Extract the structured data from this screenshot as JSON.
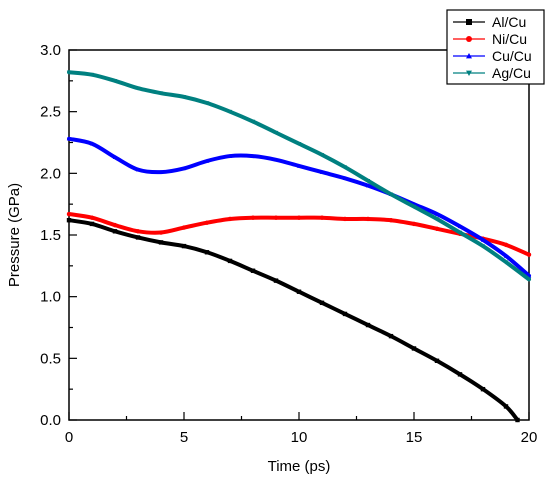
{
  "chart_data": {
    "type": "line",
    "title": "",
    "xlabel": "Time (ps)",
    "ylabel": "Pressure (GPa)",
    "xlim": [
      0,
      20
    ],
    "ylim": [
      0,
      3.0
    ],
    "xticks": [
      0,
      5,
      10,
      15,
      20
    ],
    "yticks": [
      0.0,
      0.5,
      1.0,
      1.5,
      2.0,
      2.5,
      3.0
    ],
    "xtick_labels": [
      "0",
      "5",
      "10",
      "15",
      "20"
    ],
    "ytick_labels": [
      "0.0",
      "0.5",
      "1.0",
      "1.5",
      "2.0",
      "2.5",
      "3.0"
    ],
    "grid": false,
    "legend_position": "top-right",
    "series": [
      {
        "name": "Al/Cu",
        "color": "#000000",
        "marker": "square",
        "x": [
          0,
          1,
          2,
          3,
          4,
          5,
          6,
          7,
          8,
          9,
          10,
          11,
          12,
          13,
          14,
          15,
          16,
          17,
          18,
          19,
          19.5
        ],
        "y": [
          1.62,
          1.59,
          1.53,
          1.48,
          1.44,
          1.41,
          1.36,
          1.29,
          1.21,
          1.13,
          1.04,
          0.95,
          0.86,
          0.77,
          0.68,
          0.58,
          0.48,
          0.37,
          0.25,
          0.11,
          0.0
        ]
      },
      {
        "name": "Ni/Cu",
        "color": "#ff0000",
        "marker": "circle",
        "x": [
          0,
          1,
          2,
          3,
          4,
          5,
          6,
          7,
          8,
          9,
          10,
          11,
          12,
          13,
          14,
          15,
          16,
          17,
          18,
          19,
          20
        ],
        "y": [
          1.67,
          1.64,
          1.58,
          1.53,
          1.52,
          1.56,
          1.6,
          1.63,
          1.64,
          1.64,
          1.64,
          1.64,
          1.63,
          1.63,
          1.62,
          1.59,
          1.55,
          1.51,
          1.47,
          1.42,
          1.34
        ]
      },
      {
        "name": "Cu/Cu",
        "color": "#0000ff",
        "marker": "triangle-up",
        "x": [
          0,
          1,
          2,
          3,
          4,
          5,
          6,
          7,
          8,
          9,
          10,
          11,
          12,
          13,
          14,
          15,
          16,
          17,
          18,
          19,
          20
        ],
        "y": [
          2.28,
          2.24,
          2.13,
          2.03,
          2.01,
          2.04,
          2.1,
          2.14,
          2.14,
          2.11,
          2.06,
          2.01,
          1.96,
          1.9,
          1.83,
          1.75,
          1.67,
          1.57,
          1.46,
          1.33,
          1.17
        ]
      },
      {
        "name": "Ag/Cu",
        "color": "#008080",
        "marker": "triangle-down",
        "x": [
          0,
          1,
          2,
          3,
          4,
          5,
          6,
          7,
          8,
          9,
          10,
          11,
          12,
          13,
          14,
          15,
          16,
          17,
          18,
          19,
          20
        ],
        "y": [
          2.82,
          2.8,
          2.75,
          2.69,
          2.65,
          2.62,
          2.57,
          2.5,
          2.42,
          2.33,
          2.24,
          2.15,
          2.05,
          1.94,
          1.83,
          1.73,
          1.63,
          1.52,
          1.41,
          1.28,
          1.14
        ]
      }
    ]
  }
}
